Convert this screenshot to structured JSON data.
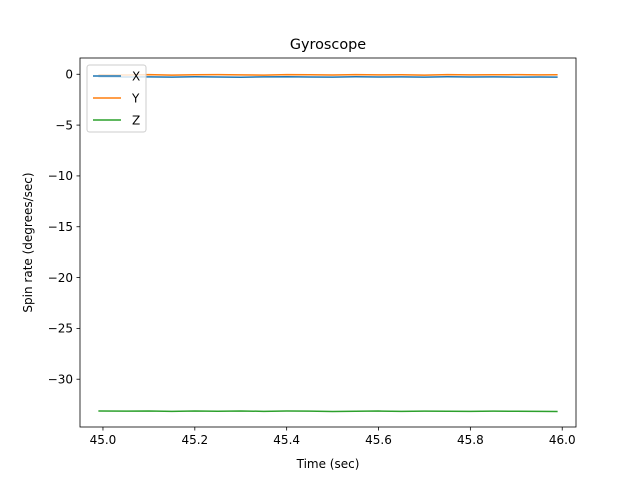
{
  "chart_data": {
    "type": "line",
    "title": "Gyroscope",
    "xlabel": "Time (sec)",
    "ylabel": "Spin rate (degrees/sec)",
    "xlim": [
      44.95,
      46.03
    ],
    "ylim": [
      -34.7,
      1.6
    ],
    "xticks": [
      45.0,
      45.2,
      45.4,
      45.6,
      45.8,
      46.0
    ],
    "xtick_labels": [
      "45.0",
      "45.2",
      "45.4",
      "45.6",
      "45.8",
      "46.0"
    ],
    "yticks": [
      0,
      -5,
      -10,
      -15,
      -20,
      -25,
      -30
    ],
    "ytick_labels": [
      "0",
      "−5",
      "−10",
      "−15",
      "−20",
      "−25",
      "−30"
    ],
    "legend_position": "upper-left",
    "grid": false,
    "x": [
      44.99,
      45.05,
      45.1,
      45.15,
      45.2,
      45.25,
      45.3,
      45.35,
      45.4,
      45.45,
      45.5,
      45.55,
      45.6,
      45.65,
      45.7,
      45.75,
      45.8,
      45.85,
      45.9,
      45.95,
      45.99
    ],
    "series": [
      {
        "name": "X",
        "color": "#1f77b4",
        "values": [
          -0.25,
          -0.27,
          -0.26,
          -0.28,
          -0.25,
          -0.27,
          -0.29,
          -0.26,
          -0.24,
          -0.27,
          -0.28,
          -0.25,
          -0.27,
          -0.26,
          -0.28,
          -0.25,
          -0.27,
          -0.26,
          -0.28,
          -0.27,
          -0.28
        ]
      },
      {
        "name": "Y",
        "color": "#ff7f0e",
        "values": [
          -0.05,
          -0.07,
          -0.04,
          -0.08,
          -0.05,
          -0.03,
          -0.06,
          -0.08,
          -0.04,
          -0.05,
          -0.07,
          -0.04,
          -0.06,
          -0.05,
          -0.08,
          -0.04,
          -0.06,
          -0.05,
          -0.04,
          -0.06,
          -0.05
        ]
      },
      {
        "name": "Z",
        "color": "#2ca02c",
        "values": [
          -33.13,
          -33.14,
          -33.12,
          -33.16,
          -33.13,
          -33.15,
          -33.12,
          -33.16,
          -33.13,
          -33.14,
          -33.17,
          -33.15,
          -33.13,
          -33.16,
          -33.14,
          -33.15,
          -33.16,
          -33.14,
          -33.15,
          -33.16,
          -33.17
        ]
      }
    ]
  }
}
